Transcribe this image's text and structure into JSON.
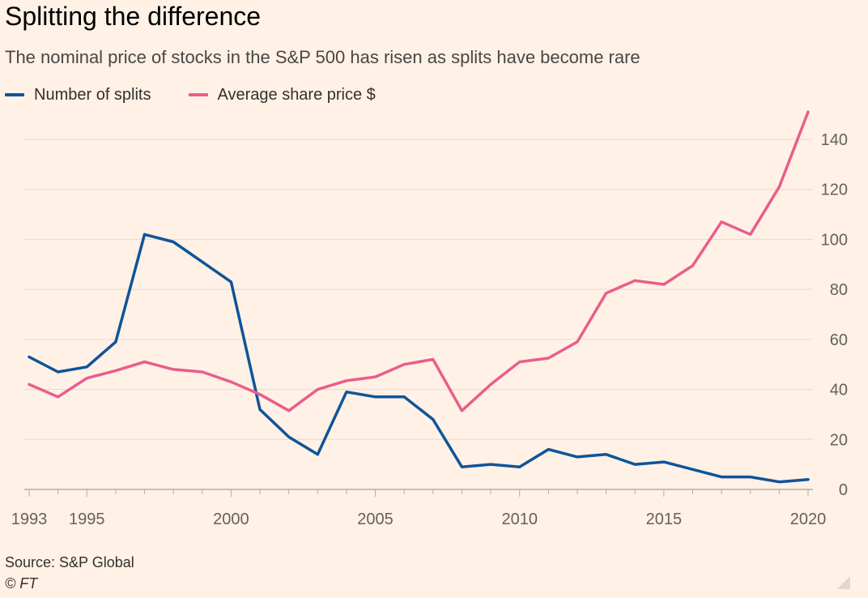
{
  "chart_data": {
    "type": "line",
    "title": "Splitting the difference",
    "subtitle": "The nominal price of stocks in the S&P 500 has risen as splits have become rare",
    "xlabel": "",
    "ylabel": "",
    "x": [
      1993,
      1994,
      1995,
      1996,
      1997,
      1998,
      1999,
      2000,
      2001,
      2002,
      2003,
      2004,
      2005,
      2006,
      2007,
      2008,
      2009,
      2010,
      2011,
      2012,
      2013,
      2014,
      2015,
      2016,
      2017,
      2018,
      2019,
      2020
    ],
    "x_tick_labels": [
      "1993",
      "1995",
      "2000",
      "2005",
      "2010",
      "2015",
      "2020"
    ],
    "xlim": [
      1993,
      2020
    ],
    "ylim": [
      0,
      150
    ],
    "y_ticks": [
      0,
      20,
      40,
      60,
      80,
      100,
      120,
      140
    ],
    "y_axis_position": "right",
    "grid": true,
    "legend_position": "top-left",
    "series": [
      {
        "name": "Number of splits",
        "color": "#0F5499",
        "values": [
          53,
          47,
          49,
          59,
          102,
          99,
          91,
          83,
          32,
          21,
          14,
          39,
          37,
          37,
          28,
          9,
          10,
          9,
          16,
          13,
          14,
          10,
          11,
          8,
          5,
          5,
          3,
          4
        ]
      },
      {
        "name": "Average share price $",
        "color": "#E95D8C",
        "values": [
          42,
          37,
          44.5,
          47.5,
          51,
          48,
          47,
          43,
          38,
          31.5,
          40,
          43.5,
          45,
          50,
          52,
          31.5,
          42,
          51,
          52.5,
          59,
          78.5,
          83.5,
          82,
          89.5,
          107,
          102,
          121,
          151
        ]
      }
    ]
  },
  "legend": {
    "items": [
      {
        "label": "Number of splits",
        "color": "#0F5499"
      },
      {
        "label": "Average share price $",
        "color": "#E95D8C"
      }
    ]
  },
  "footer": {
    "source": "Source: S&P Global",
    "credit": "© FT"
  },
  "colors": {
    "background": "#FFF1E5",
    "gridline": "#E6D9CE",
    "axis_text": "#66605C"
  },
  "icons": {
    "corner": "resize-handle-icon"
  }
}
